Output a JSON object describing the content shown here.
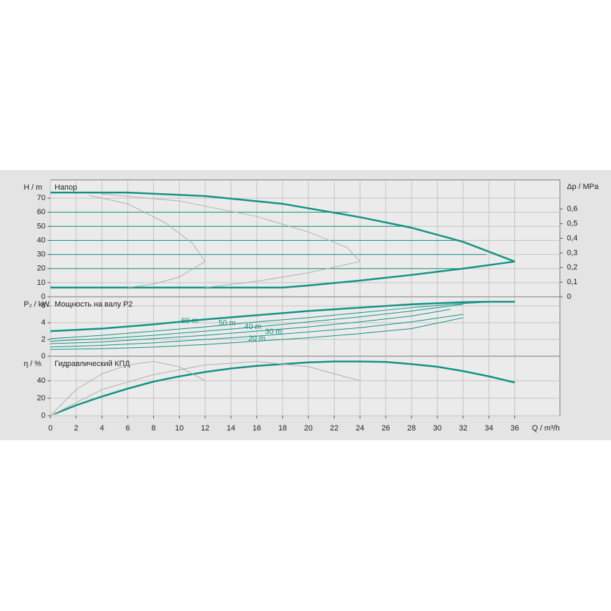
{
  "chart_data": [
    {
      "type": "line",
      "title": "Напор",
      "ylabel": "H / m",
      "y2label": "Δp / MPa",
      "xlim": [
        0,
        39.5
      ],
      "ylim": [
        0,
        83
      ],
      "yticks": [
        0,
        10,
        20,
        30,
        40,
        50,
        60,
        70
      ],
      "y2lim": [
        0,
        0.8
      ],
      "y2ticks": [
        0,
        {
          "value": 0.1,
          "label": "0,1"
        },
        {
          "value": 0.2,
          "label": "0,2"
        },
        {
          "value": 0.3,
          "label": "0,3"
        },
        {
          "value": 0.4,
          "label": "0,4"
        },
        {
          "value": 0.5,
          "label": "0,5"
        },
        {
          "value": 0.6,
          "label": "0,6"
        }
      ],
      "grid": true,
      "series": [
        {
          "color": "#109384",
          "width": 2.5,
          "x": [
            0,
            6,
            12,
            18,
            24,
            28,
            32,
            36
          ],
          "values": [
            74,
            74,
            71.5,
            66,
            56.5,
            49,
            39,
            25
          ]
        },
        {
          "color": "#109384",
          "width": 2.5,
          "x": [
            0,
            18,
            20,
            24,
            28,
            32,
            36
          ],
          "values": [
            6.5,
            6.5,
            8,
            11.5,
            15.5,
            20,
            25
          ]
        },
        {
          "color": "#109384",
          "width": 1,
          "x": [
            0,
            23.1
          ],
          "values": [
            60,
            60
          ]
        },
        {
          "color": "#109384",
          "width": 1,
          "x": [
            0,
            27.8
          ],
          "values": [
            50,
            50
          ]
        },
        {
          "color": "#109384",
          "width": 1,
          "x": [
            0,
            31.4
          ],
          "values": [
            40,
            40
          ]
        },
        {
          "color": "#109384",
          "width": 1,
          "x": [
            0,
            33.8
          ],
          "values": [
            30,
            30
          ]
        },
        {
          "color": "#109384",
          "width": 1,
          "x": [
            0,
            32
          ],
          "values": [
            20,
            20
          ]
        },
        {
          "color": "#b0b0b0",
          "width": 1,
          "x": [
            3,
            6,
            9,
            11,
            12,
            10,
            8,
            6
          ],
          "values": [
            72,
            66,
            52,
            38,
            25,
            14,
            9,
            6.5
          ]
        },
        {
          "color": "#b0b0b0",
          "width": 1,
          "x": [
            4,
            10,
            16,
            20,
            23,
            24,
            20,
            16,
            12
          ],
          "values": [
            73,
            68,
            57,
            46,
            35,
            25,
            17,
            11,
            6.5
          ]
        }
      ]
    },
    {
      "type": "line",
      "title": "Мощность на валу P2",
      "ylabel": "P₂ / kW",
      "xlim": [
        0,
        39.5
      ],
      "ylim": [
        0,
        7.1
      ],
      "yticks": [
        0,
        2,
        4,
        6
      ],
      "grid": true,
      "series": [
        {
          "color": "#109384",
          "width": 2.5,
          "x": [
            0,
            4,
            8,
            12,
            16,
            20,
            24,
            28,
            32,
            34,
            36
          ],
          "values": [
            3,
            3.3,
            3.8,
            4.4,
            4.9,
            5.4,
            5.8,
            6.2,
            6.45,
            6.5,
            6.5
          ]
        },
        {
          "name": "60 m",
          "color": "#109384",
          "width": 1,
          "x": [
            0,
            4,
            8,
            12,
            16,
            20,
            24,
            28,
            32,
            34.5
          ],
          "values": [
            2.1,
            2.5,
            3,
            3.5,
            4.1,
            4.6,
            5.2,
            5.8,
            6.3,
            6.5
          ]
        },
        {
          "name": "50 m",
          "color": "#109384",
          "width": 1,
          "x": [
            0,
            4,
            8,
            12,
            16,
            20,
            24,
            28,
            32
          ],
          "values": [
            1.8,
            2.1,
            2.5,
            3,
            3.5,
            4.1,
            4.7,
            5.4,
            6.2
          ]
        },
        {
          "name": "40 m",
          "color": "#109384",
          "width": 1,
          "x": [
            0,
            4,
            8,
            12,
            16,
            20,
            24,
            28,
            31
          ],
          "values": [
            1.5,
            1.7,
            2.1,
            2.5,
            3,
            3.5,
            4.1,
            4.8,
            5.6
          ]
        },
        {
          "name": "30 m",
          "color": "#109384",
          "width": 1,
          "x": [
            0,
            4,
            8,
            12,
            16,
            20,
            24,
            28,
            32
          ],
          "values": [
            1.1,
            1.3,
            1.6,
            2,
            2.4,
            2.9,
            3.4,
            4.1,
            5
          ]
        },
        {
          "name": "20 m",
          "color": "#109384",
          "width": 1,
          "x": [
            0,
            4,
            8,
            12,
            16,
            20,
            24,
            28,
            32
          ],
          "values": [
            0.8,
            0.9,
            1.1,
            1.4,
            1.8,
            2.2,
            2.7,
            3.3,
            4.6
          ]
        }
      ]
    },
    {
      "type": "line",
      "title": "Гидравлический КПД",
      "ylabel": "η / %",
      "xlabel": "Q / m³/h",
      "xlim": [
        0,
        39.5
      ],
      "xticks": [
        0,
        2,
        4,
        6,
        8,
        10,
        12,
        14,
        16,
        18,
        20,
        22,
        24,
        26,
        28,
        30,
        32,
        34,
        36
      ],
      "ylim": [
        0,
        68
      ],
      "yticks": [
        0,
        20,
        40
      ],
      "grid": true,
      "series": [
        {
          "color": "#109384",
          "width": 2.5,
          "x": [
            0.3,
            2,
            4,
            6,
            8,
            10,
            12,
            14,
            16,
            18,
            20,
            22,
            24,
            26,
            28,
            30,
            32,
            34,
            36
          ],
          "values": [
            2,
            12,
            22,
            31,
            39,
            45,
            50,
            54,
            57,
            59,
            61,
            62,
            62,
            61.5,
            59,
            56,
            51,
            45,
            38
          ]
        },
        {
          "color": "#b0b0b0",
          "width": 1,
          "x": [
            0,
            2,
            4,
            6,
            8,
            10,
            12
          ],
          "values": [
            0,
            30,
            48,
            58,
            62,
            56,
            40
          ]
        },
        {
          "color": "#b0b0b0",
          "width": 1,
          "x": [
            0,
            4,
            8,
            12,
            16,
            20,
            24
          ],
          "values": [
            0,
            30,
            47,
            58,
            62,
            56,
            40
          ]
        }
      ]
    }
  ]
}
